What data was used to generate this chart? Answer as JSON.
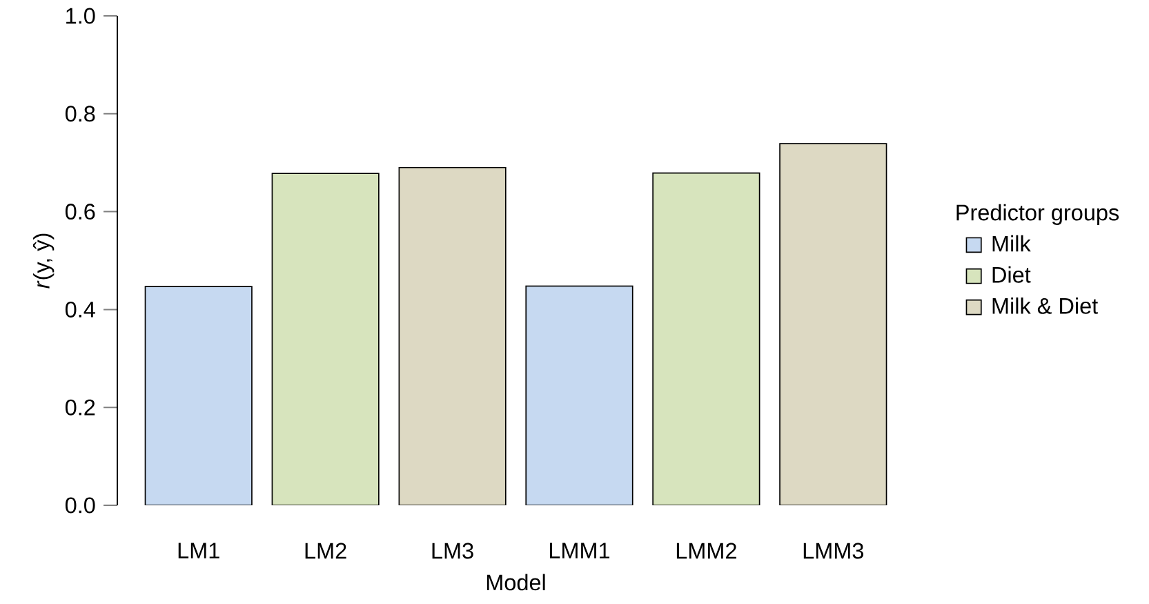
{
  "chart_data": {
    "type": "bar",
    "xlabel": "Model",
    "ylabel": "*r*(y, ŷ)",
    "legend_title": "Predictor groups",
    "legend": "right",
    "categories": [
      "LM1",
      "LM2",
      "LM3",
      "LMM1",
      "LMM2",
      "LMM3"
    ],
    "series": [
      {
        "name": "Milk",
        "color": "#c6d9f1",
        "values": [
          0.447,
          null,
          null,
          0.448,
          null,
          null
        ]
      },
      {
        "name": "Diet",
        "color": "#d7e4bd",
        "values": [
          null,
          0.678,
          null,
          null,
          0.679,
          null
        ]
      },
      {
        "name": "Milk & Diet",
        "color": "#ddd9c3",
        "values": [
          null,
          null,
          0.69,
          null,
          null,
          0.739
        ]
      }
    ],
    "ylim": [
      0,
      1
    ],
    "yticks": [
      {
        "value": 0,
        "label": "0.0"
      },
      0.2,
      0.4,
      0.6,
      0.8,
      {
        "value": 1,
        "label": "1.0"
      }
    ]
  }
}
